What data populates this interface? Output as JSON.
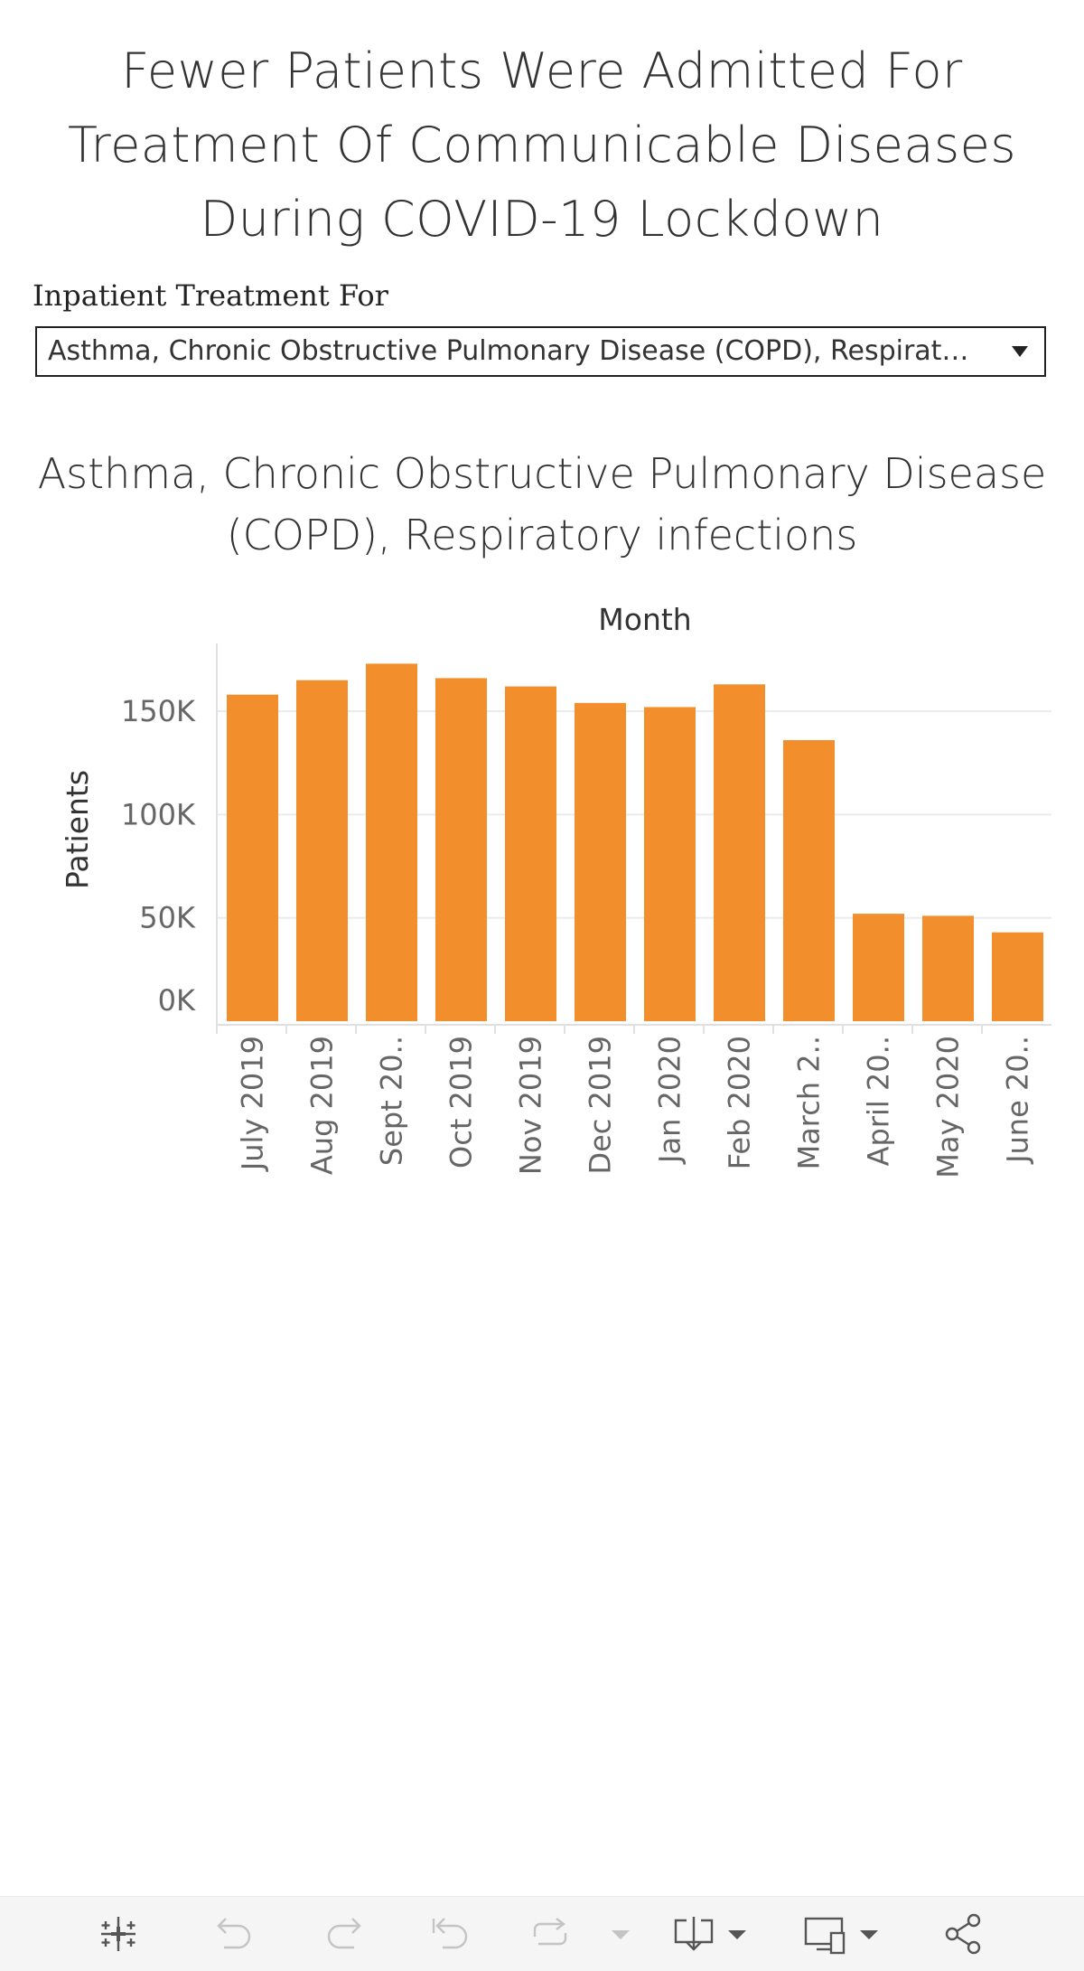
{
  "title": "Fewer Patients Were Admitted For Treatment Of Communicable Diseases During COVID-19 Lockdown",
  "filter": {
    "label": "Inpatient Treatment For",
    "selected": "Asthma, Chronic Obstructive Pulmonary Disease (COPD), Respirat…"
  },
  "sheet_title": "Asthma, Chronic Obstructive Pulmonary Disease (COPD), Respiratory infections",
  "colors": {
    "bar": "#F28E2B",
    "grid": "#EBEBEB",
    "text": "#333333",
    "tick": "#666666"
  },
  "chart_data": {
    "type": "bar",
    "title": "Asthma, Chronic Obstructive Pulmonary Disease (COPD), Respiratory infections",
    "xlabel": "Month",
    "ylabel": "Patients",
    "x_label_position": "top",
    "categories": [
      "July 2019",
      "Aug 2019",
      "Sept 20..",
      "Oct 2019",
      "Nov 2019",
      "Dec 2019",
      "Jan 2020",
      "Feb 2020",
      "March 2..",
      "April 20..",
      "May 2020",
      "June 20.."
    ],
    "values": [
      158000,
      165000,
      173000,
      166000,
      162000,
      154000,
      152000,
      163000,
      136000,
      52000,
      51000,
      43000
    ],
    "yticks": [
      0,
      50000,
      100000,
      150000
    ],
    "ytick_labels": [
      "0K",
      "50K",
      "100K",
      "150K"
    ],
    "ylim": [
      0,
      180000
    ],
    "grid": true,
    "legend": "none"
  },
  "toolbar": {
    "icons": [
      "tableau-logo-icon",
      "undo-icon",
      "redo-icon",
      "revert-icon",
      "refresh-icon",
      "pause-dropdown-icon",
      "download-icon",
      "device-preview-icon",
      "share-icon"
    ]
  }
}
